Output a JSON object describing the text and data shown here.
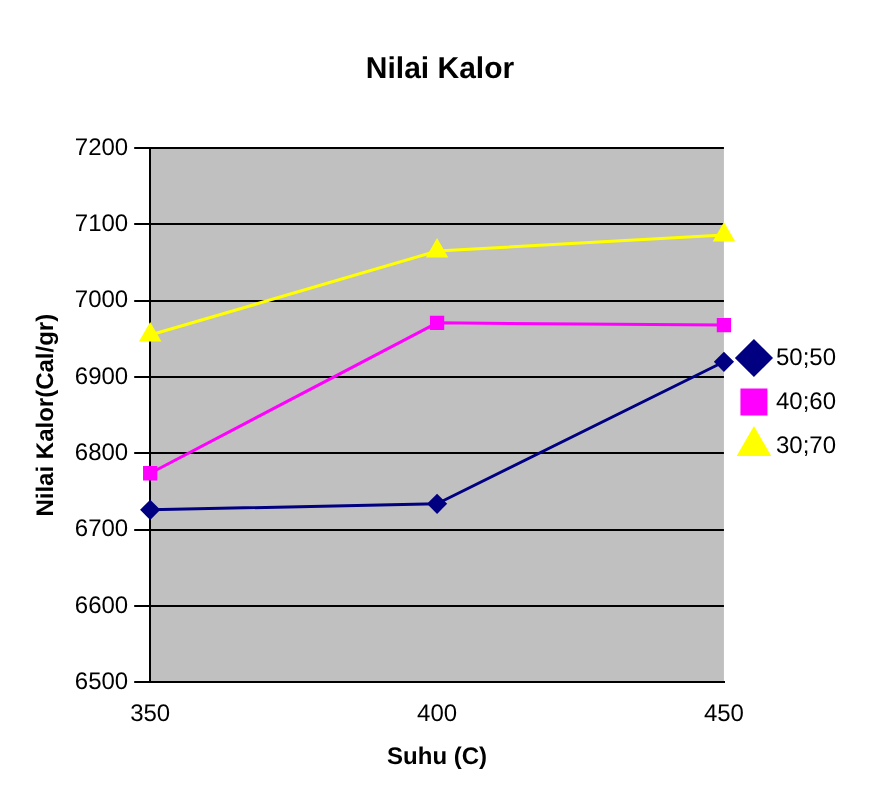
{
  "chart_data": {
    "type": "line",
    "title": "Nilai Kalor",
    "xlabel": "Suhu (C)",
    "ylabel": "Nilai Kalor(Cal/gr)",
    "categories": [
      "350",
      "400",
      "450"
    ],
    "series": [
      {
        "name": "50;50",
        "color": "#000080",
        "values": [
          6726,
          6734,
          6920
        ],
        "marker": "diamond"
      },
      {
        "name": "40;60",
        "color": "#ff00ff",
        "values": [
          6774,
          6971,
          6968
        ],
        "marker": "square"
      },
      {
        "name": "30;70",
        "color": "#ffff00",
        "values": [
          6955,
          7065,
          7086
        ],
        "marker": "triangle"
      }
    ],
    "ylim": [
      6500,
      7200
    ],
    "yticks": [
      6500,
      6600,
      6700,
      6800,
      6900,
      7000,
      7100,
      7200
    ],
    "grid": "y",
    "legend": "right"
  }
}
